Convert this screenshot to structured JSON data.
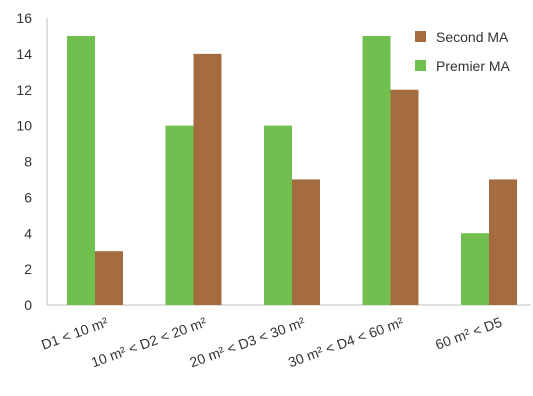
{
  "chart_data": {
    "type": "bar",
    "categories": [
      "D1 < 10 m²",
      "10 m² < D2 < 20 m²",
      "20 m² < D3 < 30 m²",
      "30 m² < D4 < 60 m²",
      "60 m² < D5"
    ],
    "series": [
      {
        "name": "Premier MA",
        "values": [
          15,
          10,
          10,
          15,
          4
        ],
        "color": "#70BF4F"
      },
      {
        "name": "Second MA",
        "values": [
          3,
          14,
          7,
          12,
          7
        ],
        "color": "#A56C40"
      }
    ],
    "ylim": [
      0,
      16
    ],
    "yticks": [
      0,
      2,
      4,
      6,
      8,
      10,
      12,
      14,
      16
    ],
    "title": "",
    "xlabel": "",
    "ylabel": "",
    "grid": false,
    "legend": {
      "position": "top-right",
      "entries": [
        "Second MA",
        "Premier MA"
      ]
    },
    "axis_color": "#BFBFBF"
  }
}
